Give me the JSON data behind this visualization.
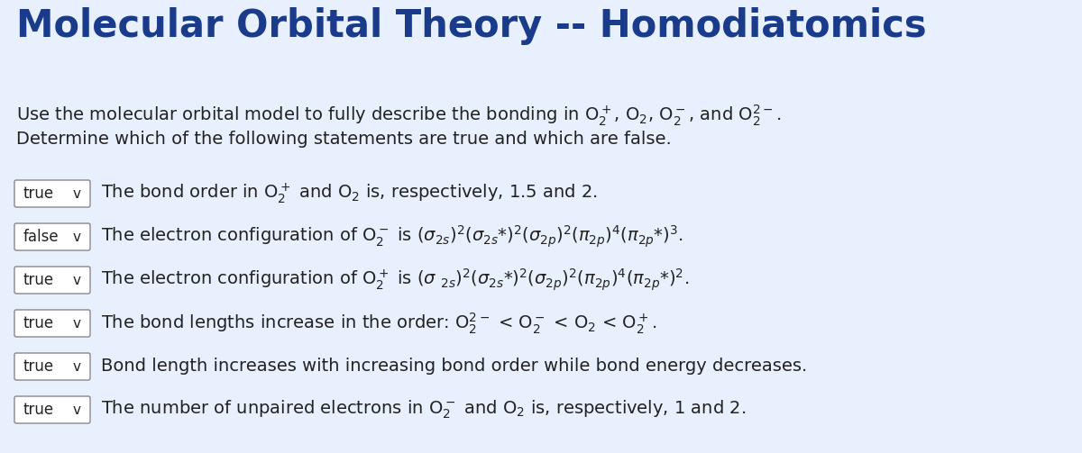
{
  "title": "Molecular Orbital Theory -- Homodiatomics",
  "title_color": "#1a3a8a",
  "background_color": "#e8f0fe",
  "intro_line1": "Use the molecular orbital model to fully describe the bonding in O$_2^+$, O$_2$, O$_2^-$, and O$_2^{2-}$.",
  "intro_line2": "Determine which of the following statements are true and which are false.",
  "statements": [
    {
      "label": "true",
      "text": "The bond order in O$_2^+$ and O$_2$ is, respectively, 1.5 and 2."
    },
    {
      "label": "false",
      "text": "The electron configuration of O$_2^-$ is ($\\sigma_{2s})^2$($\\sigma_{2s}$*)$^2$($\\sigma_{2p})^2$($\\pi_{2p})^4$($\\pi_{2p}$*)$^3$."
    },
    {
      "label": "true",
      "text": "The electron configuration of O$_2^+$ is ($\\sigma$ $_{2s})^2$($\\sigma_{2s}$*)$^2$($\\sigma_{2p})^2$($\\pi_{2p})^4$($\\pi_{2p}$*)$^2$."
    },
    {
      "label": "true",
      "text": "The bond lengths increase in the order: O$_2^{2-}$ < O$_2^-$ < O$_2$ < O$_2^+$."
    },
    {
      "label": "true",
      "text": "Bond length increases with increasing bond order while bond energy decreases."
    },
    {
      "label": "true",
      "text": "The number of unpaired electrons in O$_2^-$ and O$_2$ is, respectively, 1 and 2."
    }
  ],
  "text_color": "#222222",
  "box_facecolor": "#ffffff",
  "box_edgecolor": "#888888",
  "title_fontsize": 30,
  "body_fontsize": 14,
  "label_fontsize": 12
}
